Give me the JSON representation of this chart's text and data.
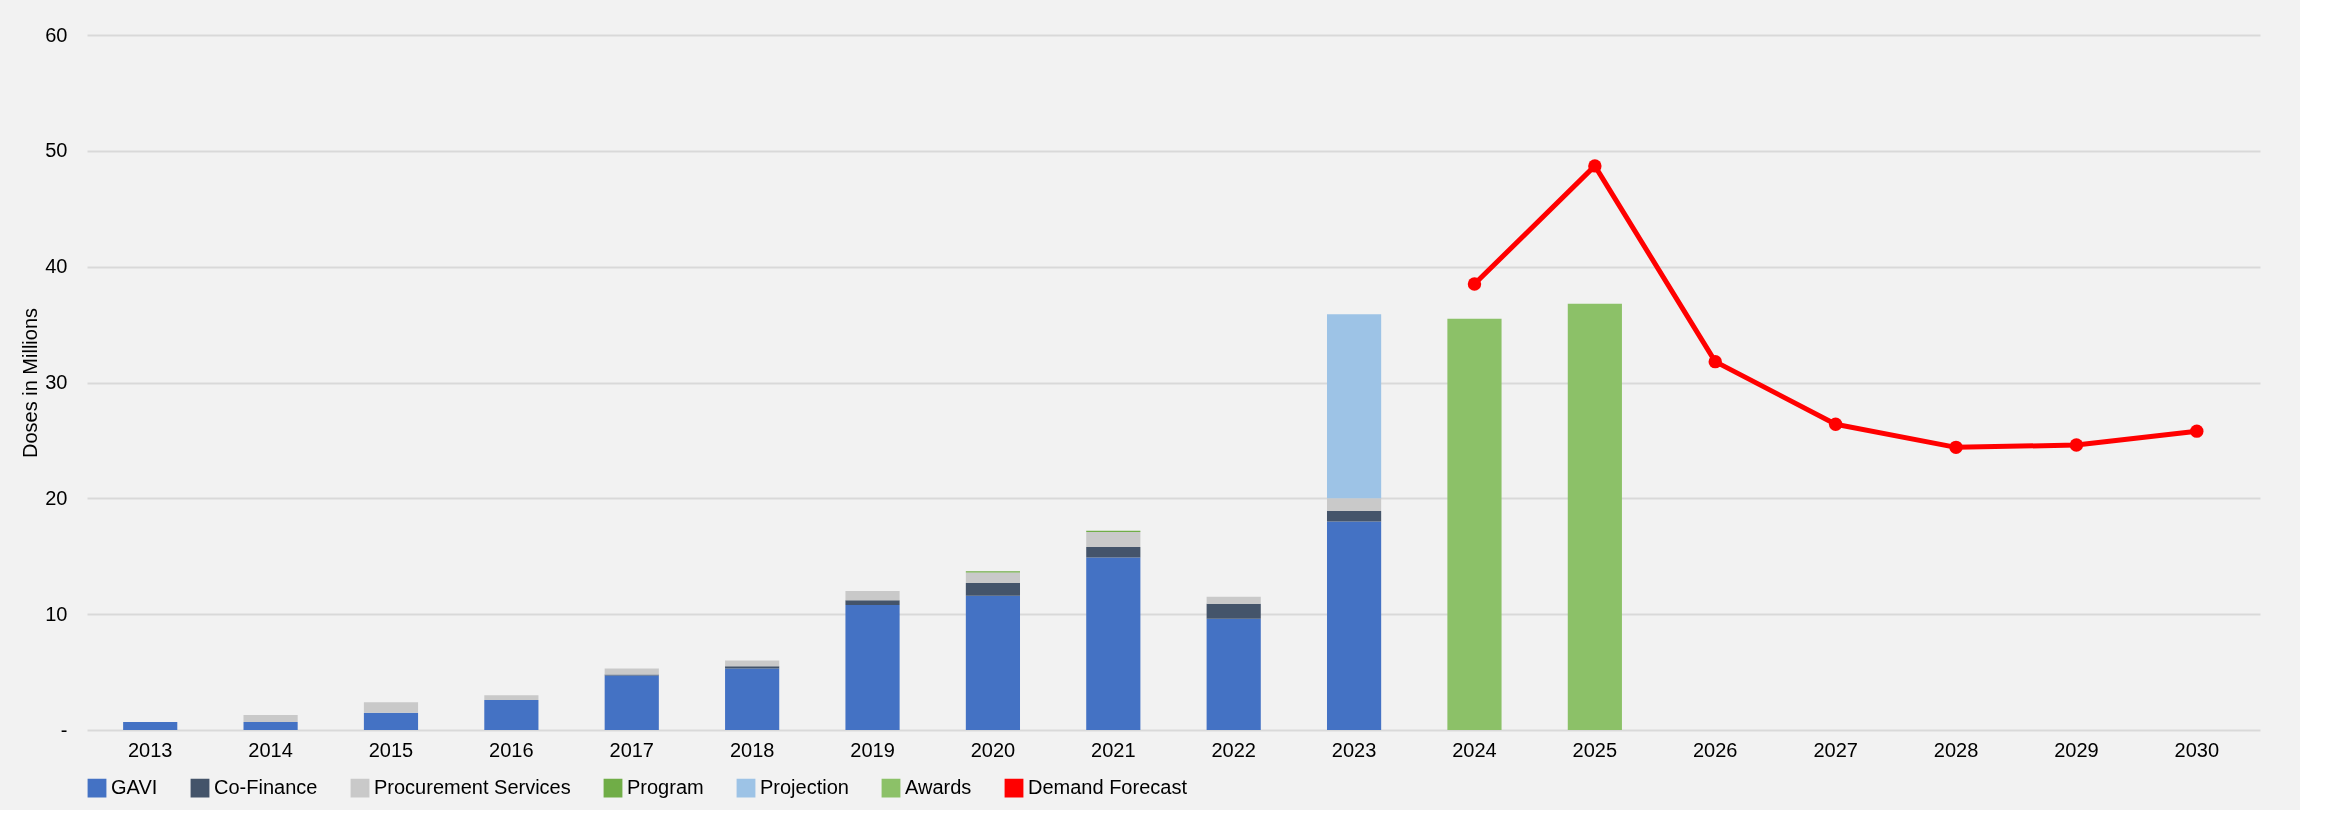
{
  "chart_data": {
    "type": "bar",
    "stacked": true,
    "ylabel": "Doses in Millions",
    "categories": [
      "2013",
      "2014",
      "2015",
      "2016",
      "2017",
      "2018",
      "2019",
      "2020",
      "2021",
      "2022",
      "2023",
      "2024",
      "2025",
      "2026",
      "2027",
      "2028",
      "2029",
      "2030"
    ],
    "series": [
      {
        "name": "GAVI",
        "color": "#4472c4",
        "values": [
          0.7,
          0.7,
          1.5,
          2.6,
          4.7,
          5.3,
          10.8,
          11.6,
          14.9,
          9.6,
          18.0,
          null,
          null,
          null,
          null,
          null,
          null,
          null
        ]
      },
      {
        "name": "Co-Finance",
        "color": "#44546a",
        "values": [
          null,
          null,
          null,
          null,
          0.1,
          0.2,
          0.4,
          1.1,
          0.9,
          1.3,
          0.9,
          null,
          null,
          null,
          null,
          null,
          null,
          null
        ]
      },
      {
        "name": "Procurement Services",
        "color": "#c9c9c9",
        "values": [
          null,
          0.6,
          0.9,
          0.4,
          0.5,
          0.5,
          0.8,
          0.9,
          1.3,
          0.6,
          1.1,
          null,
          null,
          null,
          null,
          null,
          null,
          null
        ]
      },
      {
        "name": "Program",
        "color": "#70ad47",
        "values": [
          null,
          null,
          null,
          null,
          null,
          null,
          null,
          0.1,
          0.1,
          null,
          null,
          null,
          null,
          null,
          null,
          null,
          null,
          null
        ]
      },
      {
        "name": "Projection",
        "color": "#9dc3e6",
        "values": [
          null,
          null,
          null,
          null,
          null,
          null,
          null,
          null,
          null,
          null,
          15.9,
          null,
          null,
          null,
          null,
          null,
          null,
          null
        ]
      },
      {
        "name": "Awards",
        "color": "#8cc168",
        "values": [
          null,
          null,
          null,
          null,
          null,
          null,
          null,
          null,
          null,
          null,
          null,
          35.5,
          36.8,
          null,
          null,
          null,
          null,
          null
        ]
      },
      {
        "name": "Demand Forecast",
        "type": "line",
        "color": "#ff0000",
        "marker": "circle",
        "values": [
          null,
          null,
          null,
          null,
          null,
          null,
          null,
          null,
          null,
          null,
          null,
          38.5,
          48.7,
          31.8,
          26.4,
          24.4,
          24.6,
          25.8
        ]
      }
    ],
    "ylim": [
      0,
      60
    ],
    "yticks": [
      {
        "value": 0,
        "label": "-"
      },
      10,
      20,
      30,
      40,
      50,
      60
    ],
    "grid": "y",
    "legend": "bottom"
  }
}
